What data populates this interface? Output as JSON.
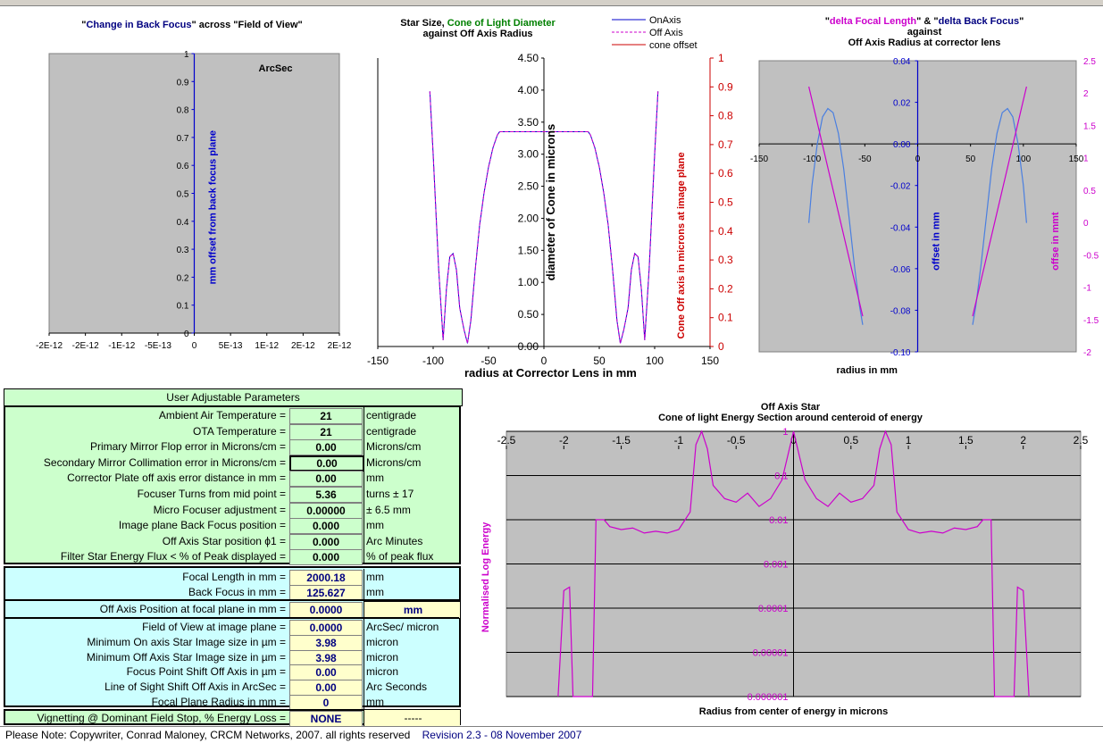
{
  "chart_data": [
    {
      "type": "line",
      "title_parts": [
        "\"",
        "Change in Back Focus",
        "\" across \"Field  of View\""
      ],
      "annotation": "ArcSec",
      "ylabel": "mm offset from back focus plane",
      "xlabel": "",
      "x_ticks": [
        "-2E-12",
        "-2E-12",
        "-1E-12",
        "-5E-13",
        "0",
        "5E-13",
        "1E-12",
        "2E-12",
        "2E-12"
      ],
      "y_ticks": [
        "0",
        "0.1",
        "0.2",
        "0.3",
        "0.4",
        "0.5",
        "0.6",
        "0.7",
        "0.8",
        "0.9",
        "1"
      ],
      "ylim": [
        0,
        1
      ],
      "series": []
    },
    {
      "type": "line",
      "title_parts": [
        "Star Size, ",
        "Cone of Light Diameter",
        "against Off Axis Radius"
      ],
      "xlabel": "radius at Corrector Lens in mm",
      "ylabel": "diameter of Cone in microns",
      "y2label": "Cone Off axis in microns at image plane",
      "xlim": [
        -150,
        150
      ],
      "ylim": [
        0,
        4.5
      ],
      "y2lim": [
        0,
        1
      ],
      "x_ticks": [
        "-150",
        "-100",
        "-50",
        "0",
        "50",
        "100",
        "150"
      ],
      "y_ticks": [
        "0.00",
        "0.50",
        "1.00",
        "1.50",
        "2.00",
        "2.50",
        "3.00",
        "3.50",
        "4.00",
        "4.50"
      ],
      "y2_ticks": [
        "0",
        "0.1",
        "0.2",
        "0.3",
        "0.4",
        "0.5",
        "0.6",
        "0.7",
        "0.8",
        "0.9",
        "1"
      ],
      "legend": [
        "OnAxis",
        "Off Axis",
        "cone offset"
      ],
      "series": [
        {
          "name": "OnAxis",
          "color": "#0000cc",
          "style": "solid",
          "x": [
            -103,
            -100,
            -95,
            -91,
            -88,
            -85,
            -82,
            -79,
            -76,
            -72,
            -69,
            -66,
            -62,
            -58,
            -54,
            -50,
            -46,
            -42,
            -40,
            -36,
            -30,
            -20,
            0,
            20,
            30,
            36,
            40,
            42,
            46,
            50,
            54,
            58,
            62,
            66,
            69,
            72,
            76,
            79,
            82,
            85,
            88,
            91,
            95,
            100,
            103
          ],
          "y": [
            3.98,
            3.0,
            1.2,
            0.1,
            0.9,
            1.4,
            1.45,
            1.2,
            0.6,
            0.25,
            0.05,
            0.4,
            1.2,
            1.9,
            2.4,
            2.8,
            3.1,
            3.3,
            3.35,
            3.35,
            3.35,
            3.35,
            3.35,
            3.35,
            3.35,
            3.35,
            3.35,
            3.3,
            3.1,
            2.8,
            2.4,
            1.9,
            1.2,
            0.4,
            0.05,
            0.25,
            0.6,
            1.2,
            1.45,
            1.4,
            0.9,
            0.1,
            1.2,
            3.0,
            3.98
          ]
        },
        {
          "name": "Off Axis",
          "color": "#cc00cc",
          "style": "dashed",
          "x": [
            -103,
            -100,
            -95,
            -91,
            -88,
            -85,
            -82,
            -79,
            -76,
            -72,
            -69,
            -66,
            -62,
            -58,
            -54,
            -50,
            -46,
            -42,
            -40,
            -36,
            -30,
            -20,
            0,
            20,
            30,
            36,
            40,
            42,
            46,
            50,
            54,
            58,
            62,
            66,
            69,
            72,
            76,
            79,
            82,
            85,
            88,
            91,
            95,
            100,
            103
          ],
          "y": [
            3.98,
            3.0,
            1.2,
            0.1,
            0.9,
            1.4,
            1.45,
            1.2,
            0.6,
            0.25,
            0.05,
            0.4,
            1.2,
            1.9,
            2.4,
            2.8,
            3.1,
            3.3,
            3.35,
            3.35,
            3.35,
            3.35,
            3.35,
            3.35,
            3.35,
            3.35,
            3.35,
            3.3,
            3.1,
            2.8,
            2.4,
            1.9,
            1.2,
            0.4,
            0.05,
            0.25,
            0.6,
            1.2,
            1.45,
            1.4,
            0.9,
            0.1,
            1.2,
            3.0,
            3.98
          ]
        },
        {
          "name": "cone offset",
          "color": "#cc0000",
          "style": "solid",
          "x": [],
          "y": []
        }
      ]
    },
    {
      "type": "line",
      "title_parts": [
        "\"",
        "delta Focal Length",
        "\" & \"",
        "delta Back Focus",
        "\"",
        "against",
        "Off Axis Radius at corrector lens"
      ],
      "xlabel": "radius in mm",
      "ylabel": "offset in mm",
      "y2label": "offse in mmt",
      "xlim": [
        -150,
        150
      ],
      "ylim": [
        -0.1,
        0.04
      ],
      "y2lim": [
        -2,
        2.5
      ],
      "x_ticks": [
        "-150",
        "-100",
        "-50",
        "0",
        "50",
        "100",
        "150"
      ],
      "y_ticks": [
        "-0.10",
        "-0.08",
        "-0.06",
        "-0.04",
        "-0.02",
        "0.00",
        "0.02",
        "0.04"
      ],
      "y2_ticks": [
        "-2",
        "-1.5",
        "-1",
        "-0.5",
        "0",
        "0.5",
        "1",
        "1.5",
        "2",
        "2.5"
      ],
      "series": [
        {
          "name": "delta Back Focus",
          "color": "#4a7fe0",
          "axis": "left",
          "x": [
            -103,
            -100,
            -95,
            -90,
            -85,
            -80,
            -75,
            -70,
            -65,
            -60,
            -55,
            -52,
            52,
            55,
            60,
            65,
            70,
            75,
            80,
            85,
            90,
            95,
            100,
            103
          ],
          "y": [
            -0.038,
            -0.02,
            0.0,
            0.013,
            0.017,
            0.015,
            0.005,
            -0.012,
            -0.035,
            -0.058,
            -0.078,
            -0.087,
            -0.087,
            -0.078,
            -0.058,
            -0.035,
            -0.012,
            0.005,
            0.015,
            0.017,
            0.013,
            0.0,
            -0.02,
            -0.038
          ]
        },
        {
          "name": "delta Focal Length",
          "color": "#cc00cc",
          "axis": "right",
          "x": [
            -103,
            -52,
            52,
            103
          ],
          "y": [
            2.1,
            -1.45,
            -1.45,
            2.1
          ]
        }
      ]
    },
    {
      "type": "line",
      "title_parts": [
        "Off Axis Star",
        "Cone of light Energy Section around centeroid of energy"
      ],
      "xlabel": "Radius from center of energy in microns",
      "ylabel": "Normalised Log Energy",
      "xlim": [
        -2.5,
        2.5
      ],
      "ylim": [
        1e-06,
        1
      ],
      "log_y": true,
      "x_ticks": [
        "-2.5",
        "-2",
        "-1.5",
        "-1",
        "-0.5",
        "0",
        "0.5",
        "1",
        "1.5",
        "2",
        "2.5"
      ],
      "y_ticks": [
        "0.000001",
        "0.00001",
        "0.0001",
        "0.001",
        "0.01",
        "0.1",
        "1"
      ],
      "series": [
        {
          "name": "",
          "color": "#cc00cc",
          "x": [
            -2.05,
            -2.0,
            -1.95,
            -1.92,
            -1.75,
            -1.72,
            -1.65,
            -1.6,
            -1.5,
            -1.4,
            -1.3,
            -1.2,
            -1.1,
            -1.0,
            -0.9,
            -0.85,
            -0.8,
            -0.75,
            -0.7,
            -0.6,
            -0.5,
            -0.4,
            -0.3,
            -0.2,
            -0.1,
            0.0,
            0.1,
            0.2,
            0.3,
            0.4,
            0.5,
            0.6,
            0.7,
            0.75,
            0.8,
            0.85,
            0.9,
            1.0,
            1.1,
            1.2,
            1.3,
            1.4,
            1.5,
            1.6,
            1.65,
            1.72,
            1.75,
            1.92,
            1.95,
            2.0,
            2.05
          ],
          "y": [
            1e-06,
            0.00025,
            0.0003,
            1e-06,
            1e-06,
            0.01,
            0.01,
            0.007,
            0.006,
            0.0065,
            0.005,
            0.0055,
            0.005,
            0.006,
            0.015,
            0.5,
            1.0,
            0.4,
            0.06,
            0.03,
            0.025,
            0.04,
            0.02,
            0.03,
            0.08,
            1.0,
            0.08,
            0.03,
            0.02,
            0.04,
            0.025,
            0.03,
            0.06,
            0.4,
            1.0,
            0.5,
            0.015,
            0.006,
            0.005,
            0.0055,
            0.005,
            0.0065,
            0.006,
            0.007,
            0.01,
            0.01,
            1e-06,
            1e-06,
            0.0003,
            0.00025,
            1e-06
          ]
        }
      ]
    }
  ],
  "params": {
    "header": "User Adjustable  Parameters",
    "rows": [
      {
        "label": "Ambient Air Temperature =",
        "value": "21",
        "unit": "centigrade"
      },
      {
        "label": "OTA  Temperature =",
        "value": "21",
        "unit": "centigrade"
      },
      {
        "label": "Primary Mirror Flop error in Microns/cm =",
        "value": "0.00",
        "unit": "Microns/cm"
      },
      {
        "label": "Secondary Mirror Collimation error in Microns/cm =",
        "value": "0.00",
        "unit": "Microns/cm"
      },
      {
        "label": "Corrector Plate off axis error distance in mm =",
        "value": "0.00",
        "unit": "mm"
      },
      {
        "label": "Focuser Turns from mid point =",
        "value": "5.36",
        "unit": "turns ± 17"
      },
      {
        "label": "Micro Focuser  adjustment =",
        "value": "0.00000",
        "unit": "± 6.5 mm"
      },
      {
        "label": "Image plane Back Focus position =",
        "value": "0.000",
        "unit": "mm"
      },
      {
        "label": "Off Axis Star position  ϕ1 =",
        "value": "0.000",
        "unit": "Arc Minutes"
      },
      {
        "label": "Filter Star Energy Flux < % of Peak displayed =",
        "value": "0.000",
        "unit": "% of peak flux"
      }
    ]
  },
  "results": {
    "focal": [
      {
        "label": "Focal Length in mm =",
        "value": "2000.18",
        "unit": "mm"
      },
      {
        "label": "Back Focus in mm =",
        "value": "125.627",
        "unit": "mm"
      }
    ],
    "offaxis": {
      "label": "Off Axis Position at focal plane in mm  =",
      "value": "0.0000",
      "unit": "mm"
    },
    "rows": [
      {
        "label": "Field of View at image plane =",
        "value": "0.0000",
        "unit": "ArcSec/ micron"
      },
      {
        "label": "Minimum On axis Star Image size in µm =",
        "value": "3.98",
        "unit": "micron"
      },
      {
        "label": "Minimum Off Axis Star Image size in µm =",
        "value": "3.98",
        "unit": "micron"
      },
      {
        "label": "Focus Point Shift Off Axis in µm =",
        "value": "0.00",
        "unit": "micron"
      },
      {
        "label": "Line of Sight Shift Off Axis in ArcSec =",
        "value": "0.00",
        "unit": "Arc Seconds"
      },
      {
        "label": "Focal Plane Radius in mm =",
        "value": "0",
        "unit": "mm"
      }
    ],
    "vignetting": {
      "label": "Vignetting @ Dominant Field Stop, % Energy Loss =",
      "value": "NONE",
      "unit": "-----"
    }
  },
  "footer": {
    "note": "Please Note:  Copywriter, Conrad Maloney, CRCM Networks, 2007. all rights reserved",
    "revision": "Revision 2.3 -  08 November 2007"
  },
  "colors": {
    "panel_green": "#ccffcc",
    "panel_cyan": "#ccffff",
    "value_yellow": "#ffffcc",
    "plot_gray": "#c0c0c0",
    "navy": "#000080",
    "magenta": "#cc00cc",
    "red": "#cc0000",
    "green": "#008000"
  }
}
